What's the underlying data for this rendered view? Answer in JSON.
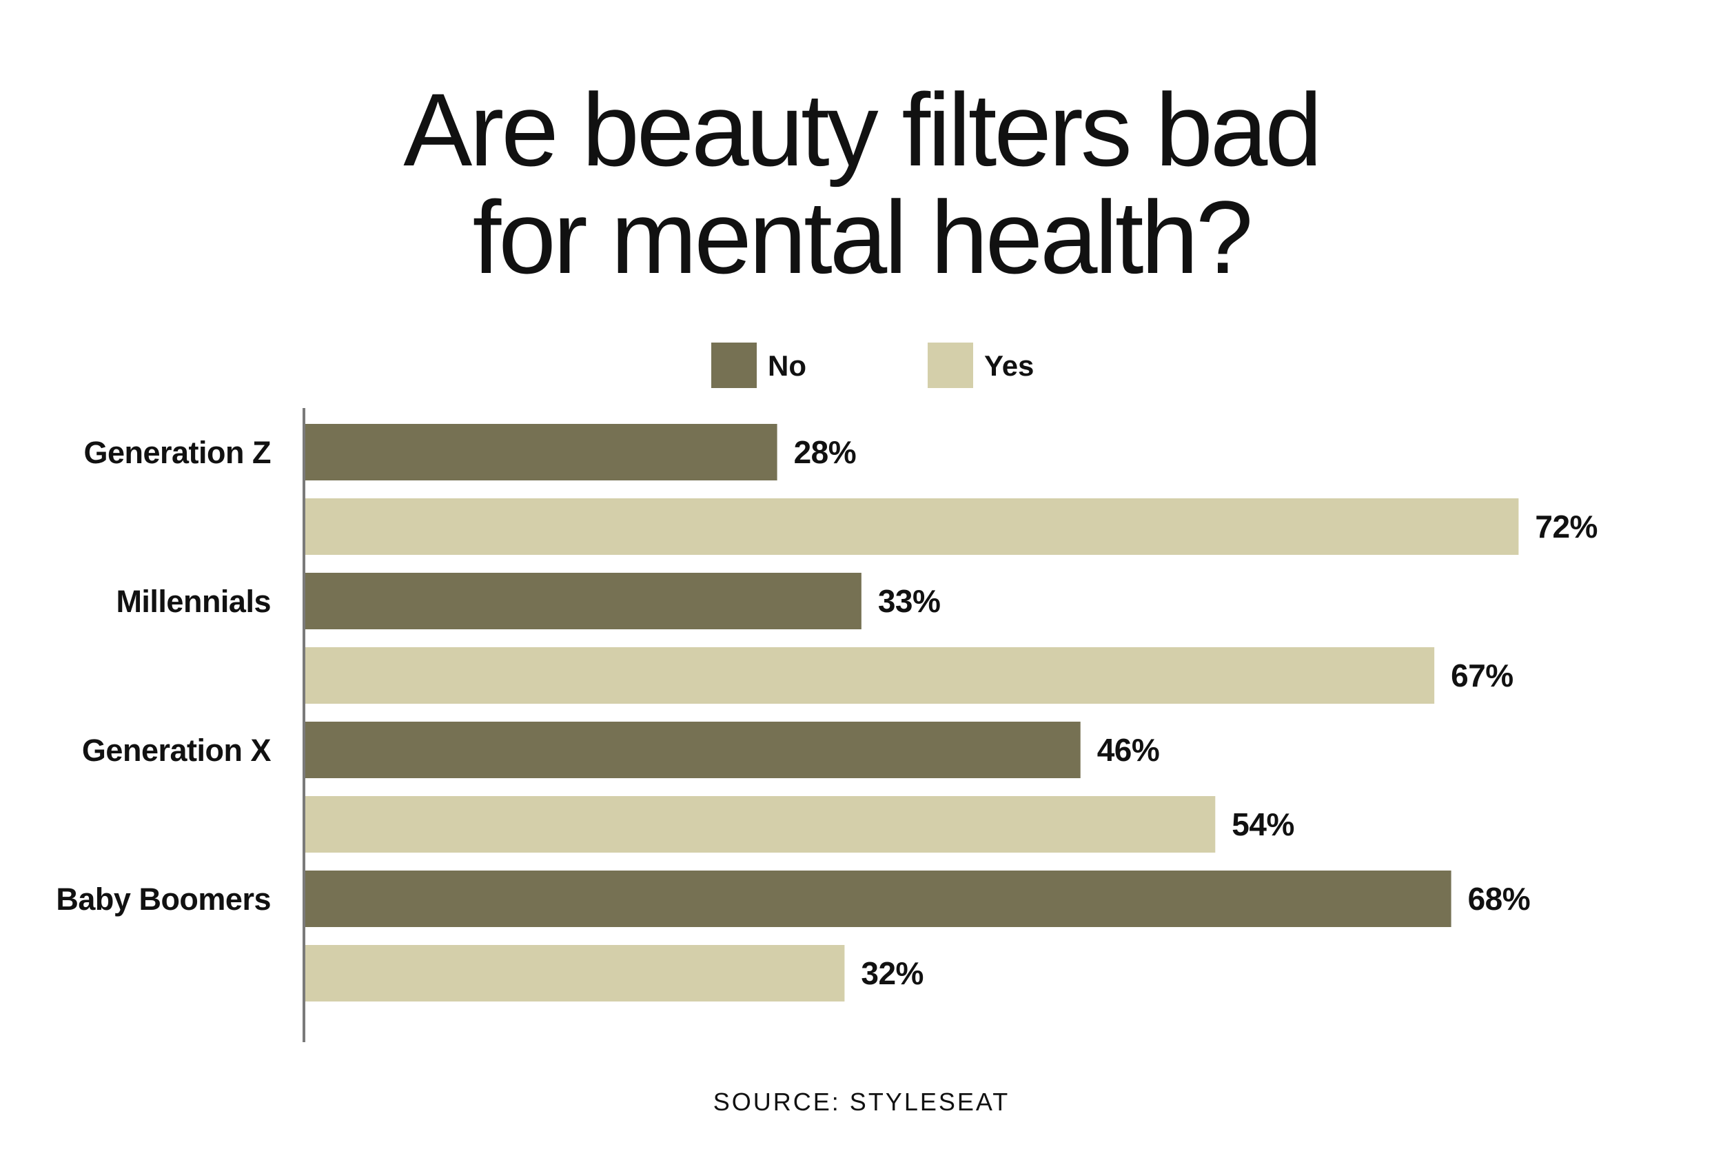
{
  "title_lines": [
    "Are beauty filters bad",
    "for mental health?"
  ],
  "source": "SOURCE: STYLESEAT",
  "colors": {
    "No": "#767153",
    "Yes": "#d4cfaa",
    "axis": "#7a7a7a"
  },
  "chart_data": {
    "type": "bar",
    "orientation": "horizontal",
    "title": "Are beauty filters bad for mental health?",
    "categories": [
      "Generation Z",
      "Millennials",
      "Generation X",
      "Baby Boomers"
    ],
    "series": [
      {
        "name": "No",
        "values": [
          28,
          33,
          46,
          68
        ]
      },
      {
        "name": "Yes",
        "values": [
          72,
          67,
          54,
          32
        ]
      }
    ],
    "value_format": "{v}%",
    "xlim": [
      0,
      100
    ],
    "grid": false,
    "legend": "top-center",
    "xlabel": "",
    "ylabel": ""
  }
}
